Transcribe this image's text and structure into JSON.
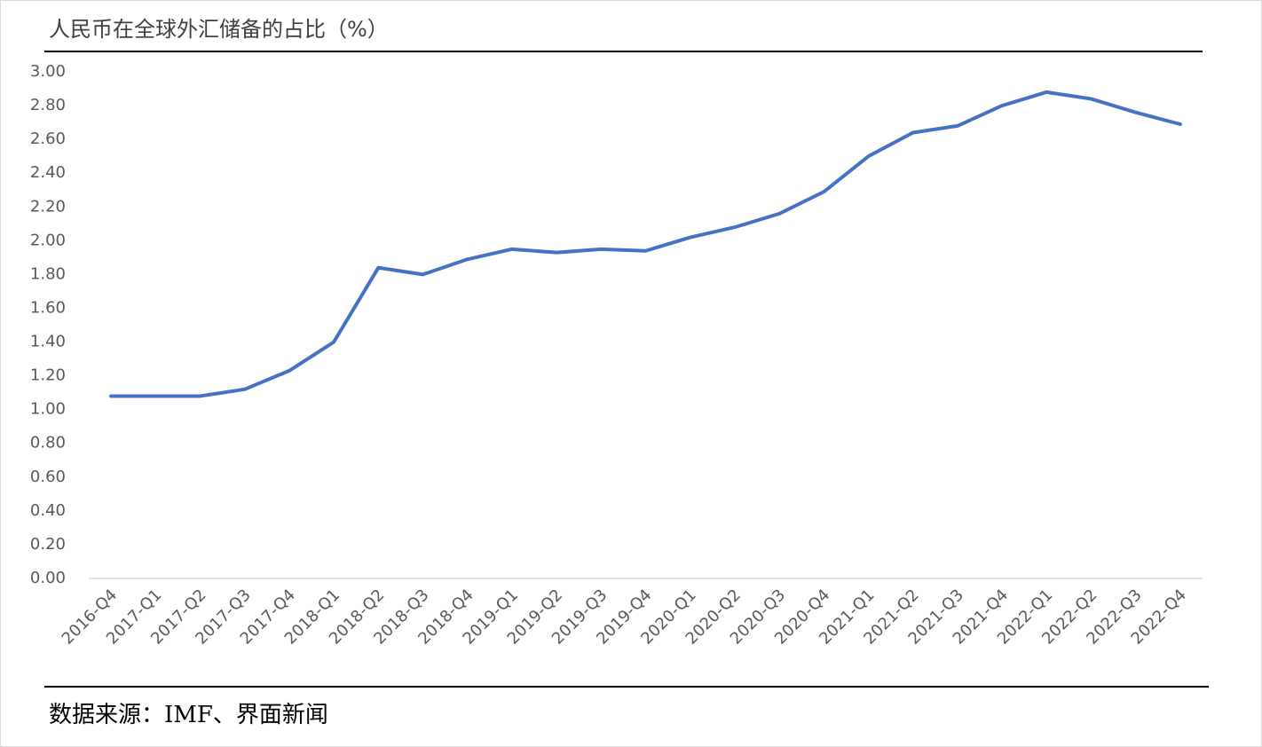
{
  "chart_data": {
    "type": "line",
    "title": "人民币在全球外汇储备的占比（%）",
    "source": "数据来源：IMF、界面新闻",
    "categories": [
      "2016-Q4",
      "2017-Q1",
      "2017-Q2",
      "2017-Q3",
      "2017-Q4",
      "2018-Q1",
      "2018-Q2",
      "2018-Q3",
      "2018-Q4",
      "2019-Q1",
      "2019-Q2",
      "2019-Q3",
      "2019-Q4",
      "2020-Q1",
      "2020-Q2",
      "2020-Q3",
      "2020-Q4",
      "2021-Q1",
      "2021-Q2",
      "2021-Q3",
      "2021-Q4",
      "2022-Q1",
      "2022-Q2",
      "2022-Q3",
      "2022-Q4"
    ],
    "values": [
      1.08,
      1.08,
      1.08,
      1.12,
      1.23,
      1.4,
      1.84,
      1.8,
      1.89,
      1.95,
      1.93,
      1.95,
      1.94,
      2.02,
      2.08,
      2.16,
      2.29,
      2.5,
      2.64,
      2.68,
      2.8,
      2.88,
      2.84,
      2.76,
      2.69
    ],
    "color": "#4472c4",
    "ylim": [
      0,
      3
    ],
    "yticks": [
      {
        "value": 0,
        "label": "0.00"
      },
      {
        "value": 0.2,
        "label": "0.20"
      },
      {
        "value": 0.4,
        "label": "0.40"
      },
      {
        "value": 0.6,
        "label": "0.60"
      },
      {
        "value": 0.8,
        "label": "0.80"
      },
      {
        "value": 1,
        "label": "1.00"
      },
      {
        "value": 1.2,
        "label": "1.20"
      },
      {
        "value": 1.4,
        "label": "1.40"
      },
      {
        "value": 1.6,
        "label": "1.60"
      },
      {
        "value": 1.8,
        "label": "1.80"
      },
      {
        "value": 2,
        "label": "2.00"
      },
      {
        "value": 2.2,
        "label": "2.20"
      },
      {
        "value": 2.4,
        "label": "2.40"
      },
      {
        "value": 2.6,
        "label": "2.60"
      },
      {
        "value": 2.8,
        "label": "2.80"
      },
      {
        "value": 3,
        "label": "3.00"
      }
    ],
    "grid": false
  }
}
